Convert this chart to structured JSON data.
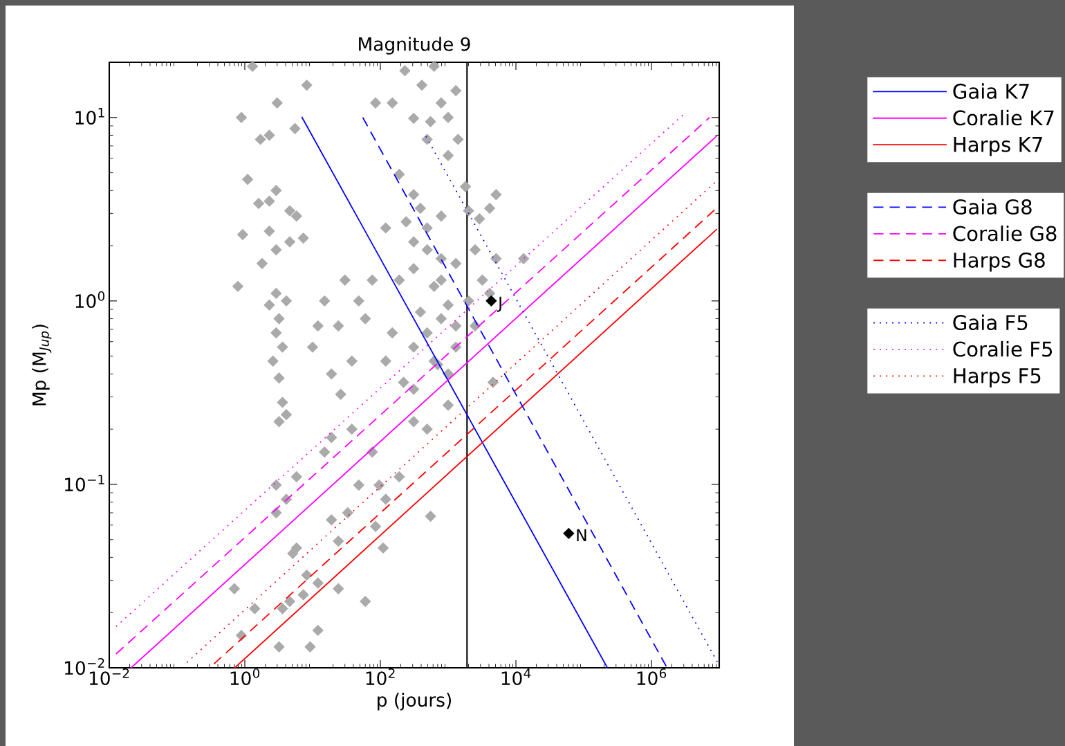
{
  "chart_data": {
    "type": "line",
    "title": "Magnitude 9",
    "xlabel": "p (jours)",
    "ylabel": "Mp (M$_{Jup}$)",
    "log": "xy",
    "xlim": [
      0.01,
      10000000
    ],
    "ylim": [
      0.01,
      20
    ],
    "xticks": [
      {
        "value": 0.01,
        "label": "10$^{−2}$"
      },
      {
        "value": 1,
        "label": "10$^{0}$"
      },
      {
        "value": 100,
        "label": "10$^{2}$"
      },
      {
        "value": 10000,
        "label": "10$^{4}$"
      },
      {
        "value": 1000000,
        "label": "10$^{6}$"
      }
    ],
    "yticks": [
      {
        "value": 0.01,
        "label": "10$^{−2}$"
      },
      {
        "value": 0.1,
        "label": "10$^{−1}$"
      },
      {
        "value": 1,
        "label": "10$^{0}$"
      },
      {
        "value": 10,
        "label": "10$^{1}$"
      }
    ],
    "grid": false,
    "legend": "right",
    "ref_lines": [
      {
        "axis": "x",
        "value": 1900,
        "color": "#000000",
        "line_style": "solid"
      }
    ],
    "annotations": [
      {
        "text": "J",
        "x": 4333,
        "y": 1
      },
      {
        "text": "N",
        "x": 60190,
        "y": 0.054
      }
    ],
    "series": [
      {
        "type": "scatter",
        "color": "#aaaaaa",
        "marker": "diamond",
        "x": [
          1.3,
          8.2,
          0.89,
          3.0,
          1.7,
          2.3,
          5.5,
          1.1,
          2.9,
          2.3,
          4.6,
          1.6,
          0.93,
          2.3,
          5.8,
          0.79,
          1.8,
          2.9,
          4.6,
          7.3,
          2.9,
          4.1,
          2.3,
          3.2,
          2.9,
          3.6,
          2.6,
          3.2,
          3.6,
          3.2,
          4.1,
          12,
          15,
          24,
          10,
          19,
          38,
          26,
          60,
          48,
          76,
          30,
          230,
          620,
          410,
          1300,
          790,
          150,
          310,
          550,
          1000,
          85,
          490,
          190,
          310,
          390,
          1000,
          1400,
          1800,
          2000,
          2900,
          490,
          790,
          240,
          120,
          310,
          490,
          790,
          1300,
          310,
          190,
          620,
          1000,
          390,
          790,
          1300,
          2500,
          3200,
          4100,
          5100,
          13000,
          2500,
          5100,
          4100,
          790,
          2000,
          490,
          310,
          150,
          120,
          620,
          1300,
          220,
          1000,
          4600,
          4.1,
          2.9,
          5.8,
          5.1,
          8.2,
          4.6,
          3.6,
          7.3,
          12,
          24,
          60,
          12,
          3.2,
          9.2,
          0.7,
          0.89,
          1.4,
          24,
          19,
          33,
          48,
          96,
          120,
          190,
          76,
          310,
          490,
          550,
          110,
          85,
          310,
          700,
          1000,
          38,
          15,
          5.8,
          2.9,
          19
        ],
        "values": [
          19,
          15,
          10,
          12,
          7.6,
          8.0,
          8.7,
          4.6,
          4.0,
          3.5,
          3.1,
          3.4,
          2.3,
          2.4,
          2.9,
          1.2,
          1.6,
          1.9,
          2.1,
          2.2,
          1.1,
          1.0,
          0.95,
          0.8,
          0.67,
          0.56,
          0.47,
          0.38,
          0.28,
          0.22,
          0.24,
          0.73,
          1.0,
          0.73,
          0.56,
          0.4,
          0.47,
          0.31,
          0.8,
          1.0,
          1.3,
          1.3,
          18,
          19,
          15,
          14,
          12,
          12,
          9.9,
          9.5,
          10,
          12,
          7.6,
          4.9,
          3.8,
          3.2,
          6.2,
          7.6,
          4.2,
          3.1,
          2.8,
          2.5,
          2.9,
          2.7,
          2.5,
          2.1,
          1.9,
          1.7,
          1.6,
          1.5,
          1.3,
          1.2,
          0.95,
          0.87,
          0.8,
          0.73,
          0.73,
          1.3,
          1.1,
          1.7,
          1.7,
          1.9,
          3.8,
          3.2,
          1.3,
          1.0,
          0.67,
          0.56,
          0.67,
          0.47,
          0.47,
          0.56,
          0.36,
          0.4,
          0.36,
          0.083,
          0.07,
          0.045,
          0.042,
          0.032,
          0.023,
          0.021,
          0.025,
          0.029,
          0.027,
          0.023,
          0.016,
          0.013,
          0.013,
          0.027,
          0.015,
          0.021,
          0.049,
          0.064,
          0.07,
          0.099,
          0.099,
          0.083,
          0.11,
          0.15,
          0.22,
          0.2,
          0.067,
          0.045,
          0.059,
          0.33,
          0.45,
          0.27,
          0.2,
          0.15,
          0.11,
          0.099,
          0.18
        ]
      },
      {
        "type": "scatter",
        "color": "#000000",
        "marker": "diamond",
        "x": [
          4333,
          60190
        ],
        "values": [
          1,
          0.054
        ]
      },
      {
        "name": "Gaia K7",
        "color": "#0000ff",
        "line_style": "solid",
        "x": [
          7.0,
          224000
        ],
        "values": [
          10,
          0.01
        ]
      },
      {
        "name": "Coralie K7",
        "color": "#ff00ff",
        "line_style": "solid",
        "x": [
          0.021,
          9100000
        ],
        "values": [
          0.01,
          7.9
        ]
      },
      {
        "name": "Harps K7",
        "color": "#ff0000",
        "line_style": "solid",
        "x": [
          0.71,
          9100000
        ],
        "values": [
          0.01,
          2.45
        ]
      },
      {
        "name": "Gaia G8",
        "color": "#0000ff",
        "line_style": "dashed",
        "x": [
          55,
          1700000
        ],
        "values": [
          10,
          0.01
        ]
      },
      {
        "name": "Coralie G8",
        "color": "#ff00ff",
        "line_style": "dashed",
        "x": [
          0.0126,
          7200000
        ],
        "values": [
          0.0119,
          10
        ]
      },
      {
        "name": "Harps G8",
        "color": "#ff0000",
        "line_style": "dashed",
        "x": [
          0.35,
          9100000
        ],
        "values": [
          0.0105,
          3.2
        ]
      },
      {
        "name": "Gaia F5",
        "color": "#0000ff",
        "line_style": "dotted",
        "x": [
          470,
          10000000
        ],
        "values": [
          7.9,
          0.0103
        ]
      },
      {
        "name": "Coralie F5",
        "color": "#ff00ff",
        "line_style": "dotted",
        "x": [
          0.0126,
          2900000
        ],
        "values": [
          0.0168,
          10.3
        ]
      },
      {
        "name": "Harps F5",
        "color": "#ff0000",
        "line_style": "dotted",
        "x": [
          0.14,
          9100000
        ],
        "values": [
          0.0107,
          4.5
        ]
      }
    ]
  }
}
